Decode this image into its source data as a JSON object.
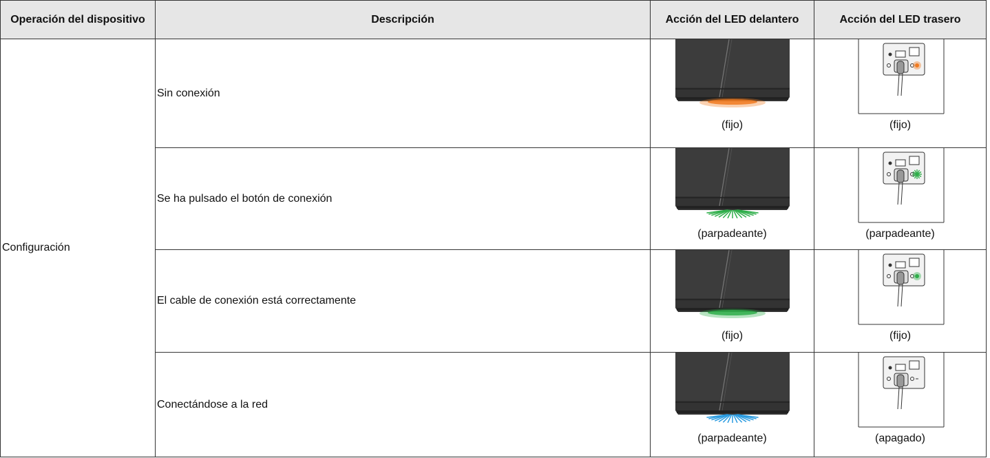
{
  "table": {
    "header": [
      "Operación del dispositivo",
      "Descripción",
      "Acción del LED delantero",
      "Acción del LED trasero"
    ],
    "group": "Configuración",
    "rows": [
      {
        "description": "Sin conexión",
        "front_led": "(fijo)",
        "rear_led": "(fijo)"
      },
      {
        "description": "Se ha pulsado el botón de conexión",
        "front_led": "(parpadeante)",
        "rear_led": "(parpadeante)"
      },
      {
        "description": "El cable de conexión está correctamente",
        "front_led": "(fijo)",
        "rear_led": "(fijo)"
      },
      {
        "description": "Conectándose a la red",
        "front_led": "(parpadeante)",
        "rear_led": "(apagado)"
      }
    ]
  }
}
